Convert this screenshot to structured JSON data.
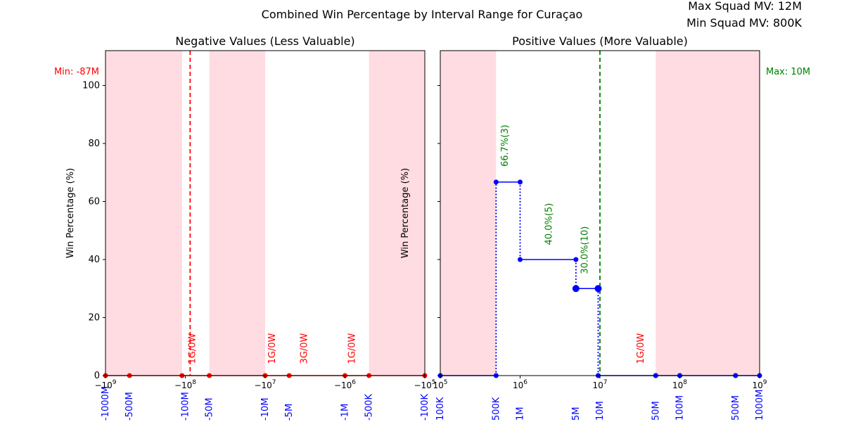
{
  "figure": {
    "title": "Combined Win Percentage by Interval Range for Curaçao",
    "max_mv_label": "Max Squad MV: 12M",
    "min_mv_label": "Min Squad MV: 800K"
  },
  "colors": {
    "neg_series": "#ff0000",
    "pos_series": "#0000ff",
    "shade": "#ffc0cb",
    "min_line": "#ff0000",
    "max_line": "#008000",
    "win_label": "#008000",
    "zero_label": "#ff0000",
    "interval_label": "#0000ff"
  },
  "chart_data": [
    {
      "type": "line",
      "title": "Negative Values (Less Valuable)",
      "ylabel": "Win Percentage (%)",
      "xscale": "symlog-negative",
      "xlim": [
        -1000000000,
        -100000
      ],
      "ylim": [
        0,
        112
      ],
      "xticks": [
        {
          "value": -1000000000,
          "label": "−10^9"
        },
        {
          "value": -100000000,
          "label": "−10^8"
        },
        {
          "value": -10000000,
          "label": "−10^7"
        },
        {
          "value": -1000000,
          "label": "−10^6"
        },
        {
          "value": -100000,
          "label": "−10^5"
        }
      ],
      "yticks": [
        0,
        20,
        40,
        60,
        80,
        100
      ],
      "interval_labels": [
        {
          "value": -1000000000,
          "label": "-1000M"
        },
        {
          "value": -500000000,
          "label": "-500M"
        },
        {
          "value": -100000000,
          "label": "-100M"
        },
        {
          "value": -50000000,
          "label": "-50M"
        },
        {
          "value": -10000000,
          "label": "-10M"
        },
        {
          "value": -5000000,
          "label": "-5M"
        },
        {
          "value": -1000000,
          "label": "-1M"
        },
        {
          "value": -500000,
          "label": "-500K"
        },
        {
          "value": -100000,
          "label": "-100K"
        }
      ],
      "shaded_ranges": [
        [
          -1000000000,
          -500000000
        ],
        [
          -500000000,
          -110000000
        ],
        [
          -50000000,
          -10000000
        ],
        [
          -500000,
          -100000
        ]
      ],
      "ref_line": {
        "value": -87000000,
        "label": "Min: -87M"
      },
      "points": [
        {
          "x": -1000000000,
          "y": 0
        },
        {
          "x": -500000000,
          "y": 0
        },
        {
          "x": -110000000,
          "y": 0
        },
        {
          "x": -50000000,
          "y": 0
        },
        {
          "x": -10000000,
          "y": 0
        },
        {
          "x": -5000000,
          "y": 0
        },
        {
          "x": -1000000,
          "y": 0
        },
        {
          "x": -500000,
          "y": 0
        },
        {
          "x": -100000,
          "y": 0
        }
      ],
      "annotations": [
        {
          "x": -75000000,
          "y": 4,
          "text": "1G/0W",
          "kind": "zero"
        },
        {
          "x": -7500000,
          "y": 4,
          "text": "1G/0W",
          "kind": "zero"
        },
        {
          "x": -3000000,
          "y": 4,
          "text": "3G/0W",
          "kind": "zero"
        },
        {
          "x": -750000,
          "y": 4,
          "text": "1G/0W",
          "kind": "zero"
        }
      ]
    },
    {
      "type": "line",
      "title": "Positive Values (More Valuable)",
      "ylabel": "Win Percentage (%)",
      "xscale": "log",
      "xlim": [
        100000,
        1000000000
      ],
      "ylim": [
        0,
        112
      ],
      "xticks": [
        {
          "value": 100000,
          "label": "10^5"
        },
        {
          "value": 1000000,
          "label": "10^6"
        },
        {
          "value": 10000000,
          "label": "10^7"
        },
        {
          "value": 100000000,
          "label": "10^8"
        },
        {
          "value": 1000000000,
          "label": "10^9"
        }
      ],
      "yticks": [
        0,
        20,
        40,
        60,
        80,
        100
      ],
      "interval_labels": [
        {
          "value": 100000,
          "label": "100K"
        },
        {
          "value": 500000,
          "label": "500K"
        },
        {
          "value": 1000000,
          "label": "1M"
        },
        {
          "value": 5000000,
          "label": "5M"
        },
        {
          "value": 10000000,
          "label": "10M"
        },
        {
          "value": 50000000,
          "label": "50M"
        },
        {
          "value": 100000000,
          "label": "100M"
        },
        {
          "value": 500000000,
          "label": "500M"
        },
        {
          "value": 1000000000,
          "label": "1000M"
        }
      ],
      "shaded_ranges": [
        [
          100000,
          500000
        ],
        [
          50000000,
          100000000
        ],
        [
          100000000,
          500000000
        ],
        [
          500000000,
          1000000000
        ]
      ],
      "ref_line": {
        "value": 10000000,
        "label": "Max: 10M"
      },
      "segments": [
        {
          "x0": 100000,
          "x1": 500000,
          "y": 0,
          "marker_r": 3.5
        },
        {
          "x0": 500000,
          "x1": 1000000,
          "y": 66.7,
          "marker_r": 3.5
        },
        {
          "x0": 1000000,
          "x1": 5000000,
          "y": 40,
          "marker_r": 3.5
        },
        {
          "x0": 5000000,
          "x1": 9500000,
          "y": 30,
          "marker_r": 5
        },
        {
          "x0": 9500000,
          "x1": 50000000,
          "y": 0,
          "marker_r": 3.5
        },
        {
          "x0": 50000000,
          "x1": 100000000,
          "y": 0,
          "marker_r": 3.5
        },
        {
          "x0": 100000000,
          "x1": 500000000,
          "y": 0,
          "marker_r": 3.5
        },
        {
          "x0": 500000000,
          "x1": 1000000000,
          "y": 0,
          "marker_r": 3.5
        }
      ],
      "annotations": [
        {
          "x": 700000,
          "y": 72,
          "text": "66.7%(3)",
          "kind": "win"
        },
        {
          "x": 2500000,
          "y": 45,
          "text": "40.0%(5)",
          "kind": "win"
        },
        {
          "x": 7000000,
          "y": 35,
          "text": "30.0%(10)",
          "kind": "win"
        },
        {
          "x": 35000000,
          "y": 4,
          "text": "1G/0W",
          "kind": "zero"
        }
      ]
    }
  ]
}
